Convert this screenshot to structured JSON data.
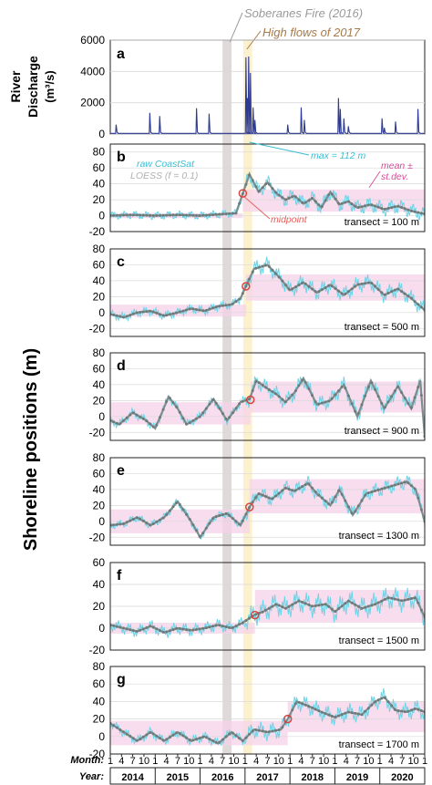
{
  "chart_data": {
    "type": "line",
    "x_unit": "year",
    "x_range": [
      2014.0,
      2021.0
    ],
    "years": [
      "2014",
      "2015",
      "2016",
      "2017",
      "2018",
      "2019",
      "2020"
    ],
    "month_labels": [
      "1",
      "4",
      "7",
      "10",
      "1",
      "4",
      "7",
      "10",
      "1",
      "4",
      "7",
      "10",
      "1",
      "4",
      "7",
      "10",
      "1",
      "4",
      "7",
      "10",
      "1",
      "4",
      "7",
      "10",
      "1",
      "4",
      "7",
      "10",
      "1"
    ],
    "month_axis_label": "Month:",
    "year_axis_label": "Year:",
    "event_bands": [
      {
        "label": "Soberanes Fire (2016)",
        "x0": 2016.5,
        "x1": 2016.7,
        "color": "#d9d2d2"
      },
      {
        "label": "High flows of 2017",
        "x0": 2016.96,
        "x1": 2017.16,
        "color": "#fbefc7"
      }
    ],
    "discharge": {
      "panel": "a",
      "ylabel_line1": "River",
      "ylabel_line2": "Discharge",
      "ylabel_line3": "(m³/s)",
      "ylim": [
        0,
        6000
      ],
      "yticks": [
        "0",
        "2000",
        "4000",
        "6000"
      ],
      "color": "#2d3b95",
      "baseline": 40,
      "spikes": [
        [
          2014.13,
          600
        ],
        [
          2014.88,
          1350
        ],
        [
          2015.1,
          1150
        ],
        [
          2015.92,
          1650
        ],
        [
          2016.2,
          1300
        ],
        [
          2017.02,
          4900
        ],
        [
          2017.05,
          2300
        ],
        [
          2017.08,
          4950
        ],
        [
          2017.12,
          3900
        ],
        [
          2017.18,
          1700
        ],
        [
          2017.22,
          900
        ],
        [
          2017.95,
          600
        ],
        [
          2018.25,
          1700
        ],
        [
          2018.32,
          900
        ],
        [
          2019.08,
          2300
        ],
        [
          2019.12,
          1600
        ],
        [
          2019.2,
          1000
        ],
        [
          2019.3,
          500
        ],
        [
          2020.05,
          1000
        ],
        [
          2020.1,
          400
        ],
        [
          2020.35,
          800
        ],
        [
          2020.85,
          1600
        ]
      ]
    },
    "shoreline_ylabel": "Shoreline positions (m)",
    "shoreline_colors": {
      "raw": "#6ed3e6",
      "loess": "#7e8e8e",
      "band": "#f6d2e8",
      "midpoint": "#d9443d"
    },
    "panels": [
      {
        "label": "b",
        "transect": "transect = 100 m",
        "ylim": [
          -20,
          90
        ],
        "yticks": [
          "-20",
          "0",
          "20",
          "40",
          "60",
          "80"
        ],
        "before_band": [
          -3,
          3
        ],
        "after_band": [
          5,
          33
        ],
        "midpoint": [
          2016.95,
          28
        ],
        "loess": [
          [
            2014.0,
            0
          ],
          [
            2014.5,
            1
          ],
          [
            2015.0,
            0
          ],
          [
            2015.5,
            1
          ],
          [
            2016.0,
            0
          ],
          [
            2016.5,
            2
          ],
          [
            2016.8,
            3
          ],
          [
            2016.95,
            28
          ],
          [
            2017.1,
            52
          ],
          [
            2017.3,
            30
          ],
          [
            2017.5,
            42
          ],
          [
            2017.7,
            28
          ],
          [
            2017.9,
            20
          ],
          [
            2018.1,
            25
          ],
          [
            2018.3,
            15
          ],
          [
            2018.5,
            22
          ],
          [
            2018.7,
            10
          ],
          [
            2018.9,
            30
          ],
          [
            2019.1,
            14
          ],
          [
            2019.3,
            18
          ],
          [
            2019.5,
            10
          ],
          [
            2019.8,
            14
          ],
          [
            2020.1,
            8
          ],
          [
            2020.4,
            12
          ],
          [
            2020.7,
            6
          ],
          [
            2021.0,
            2
          ]
        ],
        "annotations": {
          "raw_label": "raw CoastSat",
          "loess_label": "LOESS (f = 0.1)",
          "max_label": "max = 112 m",
          "mean_label_line1": "mean ±",
          "mean_label_line2": "st.dev.",
          "midpoint_label": "midpoint"
        }
      },
      {
        "label": "c",
        "transect": "transect = 500 m",
        "ylim": [
          -30,
          80
        ],
        "yticks": [
          "-20",
          "0",
          "20",
          "40",
          "60",
          "80"
        ],
        "before_band": [
          -5,
          10
        ],
        "after_band": [
          15,
          48
        ],
        "midpoint": [
          2017.02,
          33
        ],
        "loess": [
          [
            2014.0,
            -2
          ],
          [
            2014.3,
            -6
          ],
          [
            2014.6,
            0
          ],
          [
            2014.9,
            2
          ],
          [
            2015.2,
            -4
          ],
          [
            2015.5,
            0
          ],
          [
            2015.8,
            5
          ],
          [
            2016.1,
            2
          ],
          [
            2016.4,
            8
          ],
          [
            2016.7,
            10
          ],
          [
            2016.9,
            18
          ],
          [
            2017.02,
            33
          ],
          [
            2017.2,
            55
          ],
          [
            2017.5,
            60
          ],
          [
            2017.8,
            42
          ],
          [
            2018.0,
            28
          ],
          [
            2018.3,
            38
          ],
          [
            2018.6,
            25
          ],
          [
            2018.9,
            35
          ],
          [
            2019.2,
            22
          ],
          [
            2019.5,
            35
          ],
          [
            2019.8,
            38
          ],
          [
            2020.1,
            22
          ],
          [
            2020.4,
            30
          ],
          [
            2020.7,
            18
          ],
          [
            2021.0,
            3
          ]
        ]
      },
      {
        "label": "d",
        "transect": "transect = 900 m",
        "ylim": [
          -30,
          80
        ],
        "yticks": [
          "-20",
          "0",
          "20",
          "40",
          "60",
          "80"
        ],
        "before_band": [
          -10,
          18
        ],
        "after_band": [
          5,
          44
        ],
        "midpoint": [
          2017.12,
          21
        ],
        "loess": [
          [
            2014.0,
            -5
          ],
          [
            2014.2,
            -10
          ],
          [
            2014.5,
            5
          ],
          [
            2014.8,
            -5
          ],
          [
            2015.0,
            -15
          ],
          [
            2015.3,
            25
          ],
          [
            2015.5,
            10
          ],
          [
            2015.7,
            -10
          ],
          [
            2016.0,
            0
          ],
          [
            2016.3,
            22
          ],
          [
            2016.6,
            -5
          ],
          [
            2016.9,
            18
          ],
          [
            2017.1,
            22
          ],
          [
            2017.25,
            45
          ],
          [
            2017.5,
            35
          ],
          [
            2017.7,
            28
          ],
          [
            2017.9,
            18
          ],
          [
            2018.1,
            30
          ],
          [
            2018.3,
            48
          ],
          [
            2018.6,
            15
          ],
          [
            2018.9,
            20
          ],
          [
            2019.2,
            40
          ],
          [
            2019.5,
            0
          ],
          [
            2019.8,
            45
          ],
          [
            2020.1,
            10
          ],
          [
            2020.4,
            38
          ],
          [
            2020.7,
            10
          ],
          [
            2020.9,
            45
          ],
          [
            2021.0,
            -25
          ]
        ]
      },
      {
        "label": "e",
        "transect": "transect = 1300 m",
        "ylim": [
          -30,
          80
        ],
        "yticks": [
          "-20",
          "0",
          "20",
          "40",
          "60",
          "80"
        ],
        "before_band": [
          -15,
          15
        ],
        "after_band": [
          10,
          53
        ],
        "midpoint": [
          2017.1,
          18
        ],
        "loess": [
          [
            2014.0,
            -5
          ],
          [
            2014.3,
            -3
          ],
          [
            2014.6,
            5
          ],
          [
            2014.9,
            -5
          ],
          [
            2015.2,
            5
          ],
          [
            2015.5,
            25
          ],
          [
            2015.8,
            0
          ],
          [
            2016.0,
            -20
          ],
          [
            2016.3,
            5
          ],
          [
            2016.6,
            10
          ],
          [
            2016.9,
            -5
          ],
          [
            2017.1,
            18
          ],
          [
            2017.3,
            35
          ],
          [
            2017.6,
            28
          ],
          [
            2017.9,
            42
          ],
          [
            2018.1,
            38
          ],
          [
            2018.4,
            48
          ],
          [
            2018.6,
            35
          ],
          [
            2018.9,
            20
          ],
          [
            2019.1,
            40
          ],
          [
            2019.4,
            8
          ],
          [
            2019.7,
            35
          ],
          [
            2020.0,
            40
          ],
          [
            2020.3,
            45
          ],
          [
            2020.6,
            50
          ],
          [
            2020.8,
            40
          ],
          [
            2021.0,
            0
          ]
        ]
      },
      {
        "label": "f",
        "transect": "transect = 1500 m",
        "ylim": [
          -20,
          60
        ],
        "yticks": [
          "-20",
          "0",
          "20",
          "40",
          "60"
        ],
        "before_band": [
          -5,
          5
        ],
        "after_band": [
          5,
          35
        ],
        "midpoint": [
          2017.22,
          12
        ],
        "loess": [
          [
            2014.0,
            3
          ],
          [
            2014.3,
            0
          ],
          [
            2014.6,
            -3
          ],
          [
            2014.9,
            2
          ],
          [
            2015.2,
            -4
          ],
          [
            2015.5,
            0
          ],
          [
            2015.8,
            -2
          ],
          [
            2016.1,
            0
          ],
          [
            2016.4,
            3
          ],
          [
            2016.7,
            0
          ],
          [
            2016.95,
            5
          ],
          [
            2017.2,
            12
          ],
          [
            2017.4,
            15
          ],
          [
            2017.7,
            22
          ],
          [
            2017.9,
            18
          ],
          [
            2018.2,
            25
          ],
          [
            2018.5,
            20
          ],
          [
            2018.8,
            22
          ],
          [
            2019.0,
            15
          ],
          [
            2019.3,
            25
          ],
          [
            2019.6,
            18
          ],
          [
            2019.9,
            22
          ],
          [
            2020.2,
            28
          ],
          [
            2020.5,
            25
          ],
          [
            2020.8,
            28
          ],
          [
            2021.0,
            10
          ]
        ]
      },
      {
        "label": "g",
        "transect": "transect = 1700 m",
        "ylim": [
          -20,
          80
        ],
        "yticks": [
          "-20",
          "0",
          "20",
          "40",
          "60",
          "80"
        ],
        "before_band": [
          -10,
          18
        ],
        "after_band": [
          5,
          40
        ],
        "midpoint": [
          2017.95,
          20
        ],
        "loess": [
          [
            2014.0,
            15
          ],
          [
            2014.3,
            5
          ],
          [
            2014.6,
            -5
          ],
          [
            2014.9,
            5
          ],
          [
            2015.2,
            -5
          ],
          [
            2015.5,
            5
          ],
          [
            2015.8,
            -5
          ],
          [
            2016.1,
            0
          ],
          [
            2016.4,
            -8
          ],
          [
            2016.7,
            5
          ],
          [
            2016.95,
            -5
          ],
          [
            2017.2,
            8
          ],
          [
            2017.5,
            5
          ],
          [
            2017.8,
            8
          ],
          [
            2017.95,
            20
          ],
          [
            2018.15,
            40
          ],
          [
            2018.4,
            35
          ],
          [
            2018.7,
            28
          ],
          [
            2019.0,
            22
          ],
          [
            2019.3,
            28
          ],
          [
            2019.6,
            25
          ],
          [
            2019.9,
            40
          ],
          [
            2020.1,
            45
          ],
          [
            2020.35,
            30
          ],
          [
            2020.6,
            28
          ],
          [
            2020.8,
            32
          ],
          [
            2021.0,
            28
          ]
        ]
      }
    ]
  }
}
